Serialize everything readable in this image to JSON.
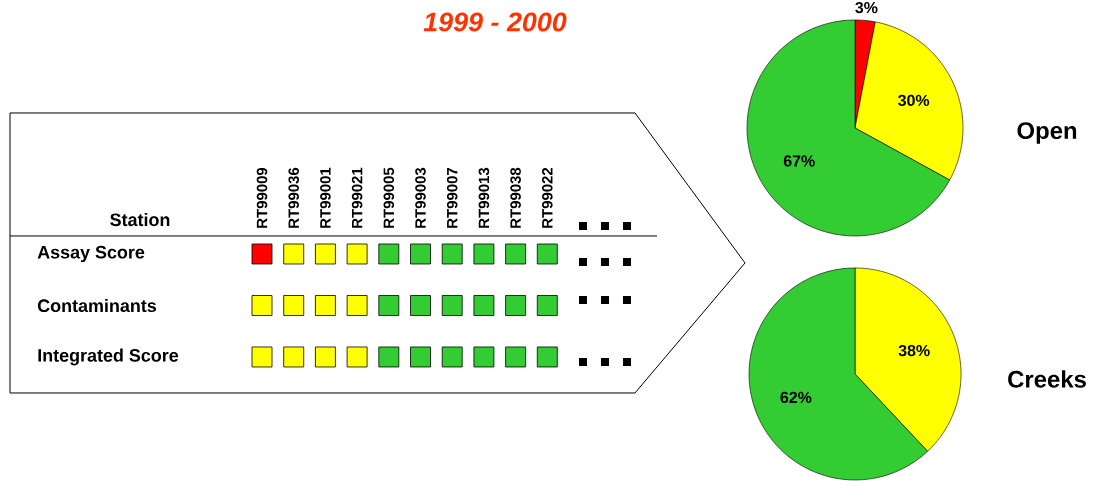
{
  "chart_data": [
    {
      "type": "other",
      "title": "1999 - 2000",
      "xlabel": "Station",
      "categories": [
        "RT99009",
        "RT99036",
        "RT99001",
        "RT99021",
        "RT99005",
        "RT99003",
        "RT99007",
        "RT99013",
        "RT99038",
        "RT99022"
      ],
      "y_categories": [
        "Assay Score",
        "Contaminants",
        "Integrated Score"
      ],
      "colors": [
        [
          "#ff0000",
          "#ffff00",
          "#ffff00",
          "#ffff00",
          "#33cc33",
          "#33cc33",
          "#33cc33",
          "#33cc33",
          "#33cc33",
          "#33cc33"
        ],
        [
          "#ffff00",
          "#ffff00",
          "#ffff00",
          "#ffff00",
          "#33cc33",
          "#33cc33",
          "#33cc33",
          "#33cc33",
          "#33cc33",
          "#33cc33"
        ],
        [
          "#ffff00",
          "#ffff00",
          "#ffff00",
          "#ffff00",
          "#33cc33",
          "#33cc33",
          "#33cc33",
          "#33cc33",
          "#33cc33",
          "#33cc33"
        ]
      ]
    },
    {
      "type": "pie",
      "title": "Open",
      "categories": [
        null,
        null,
        null
      ],
      "values": [
        3,
        30,
        67
      ],
      "colors": [
        "#ff0000",
        "#ffff00",
        "#33cc33"
      ],
      "value_labels": [
        "3%",
        "30%",
        "67%"
      ]
    },
    {
      "type": "pie",
      "title": "Creeks",
      "categories": [
        null,
        null
      ],
      "values": [
        38,
        62
      ],
      "colors": [
        "#ffff00",
        "#33cc33"
      ],
      "value_labels": [
        "38%",
        "62%"
      ]
    }
  ]
}
